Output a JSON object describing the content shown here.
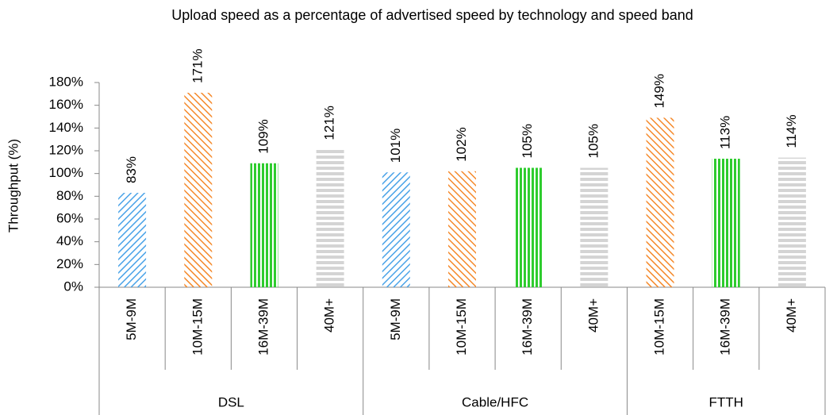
{
  "chart_data": {
    "type": "bar",
    "title": "Upload speed as a percentage of advertised speed by technology and speed band",
    "y_label": "Throughput (%)",
    "groups": [
      {
        "name": "DSL",
        "categories": [
          "5M-9M",
          "10M-15M",
          "16M-39M",
          "40M+"
        ],
        "values": [
          83,
          171,
          109,
          121
        ],
        "value_labels": [
          "83%",
          "171%",
          "109%",
          "121%"
        ]
      },
      {
        "name": "Cable/HFC",
        "categories": [
          "5M-9M",
          "10M-15M",
          "16M-39M",
          "40M+"
        ],
        "values": [
          101,
          102,
          105,
          105
        ],
        "value_labels": [
          "101%",
          "102%",
          "105%",
          "105%"
        ]
      },
      {
        "name": "FTTH",
        "categories": [
          "10M-15M",
          "16M-39M",
          "40M+"
        ],
        "values": [
          149,
          113,
          114
        ],
        "value_labels": [
          "149%",
          "113%",
          "114%"
        ]
      }
    ],
    "band_styles": {
      "5M-9M": {
        "color": "#4aa3e8",
        "pattern": "diagonal-up"
      },
      "10M-15M": {
        "color": "#f5892a",
        "pattern": "diagonal-down"
      },
      "16M-39M": {
        "color": "#2ecc2e",
        "pattern": "vertical"
      },
      "40M+": {
        "color": "#d4d4d4",
        "pattern": "horizontal"
      }
    },
    "ylim": [
      0,
      180
    ],
    "yticks": [
      {
        "value": 0,
        "label": "0%"
      },
      {
        "value": 20,
        "label": "20%"
      },
      {
        "value": 40,
        "label": "40%"
      },
      {
        "value": 60,
        "label": "60%"
      },
      {
        "value": 80,
        "label": "80%"
      },
      {
        "value": 100,
        "label": "100%"
      },
      {
        "value": 120,
        "label": "120%"
      },
      {
        "value": 140,
        "label": "140%"
      },
      {
        "value": 160,
        "label": "160%"
      },
      {
        "value": 180,
        "label": "180%"
      }
    ]
  }
}
